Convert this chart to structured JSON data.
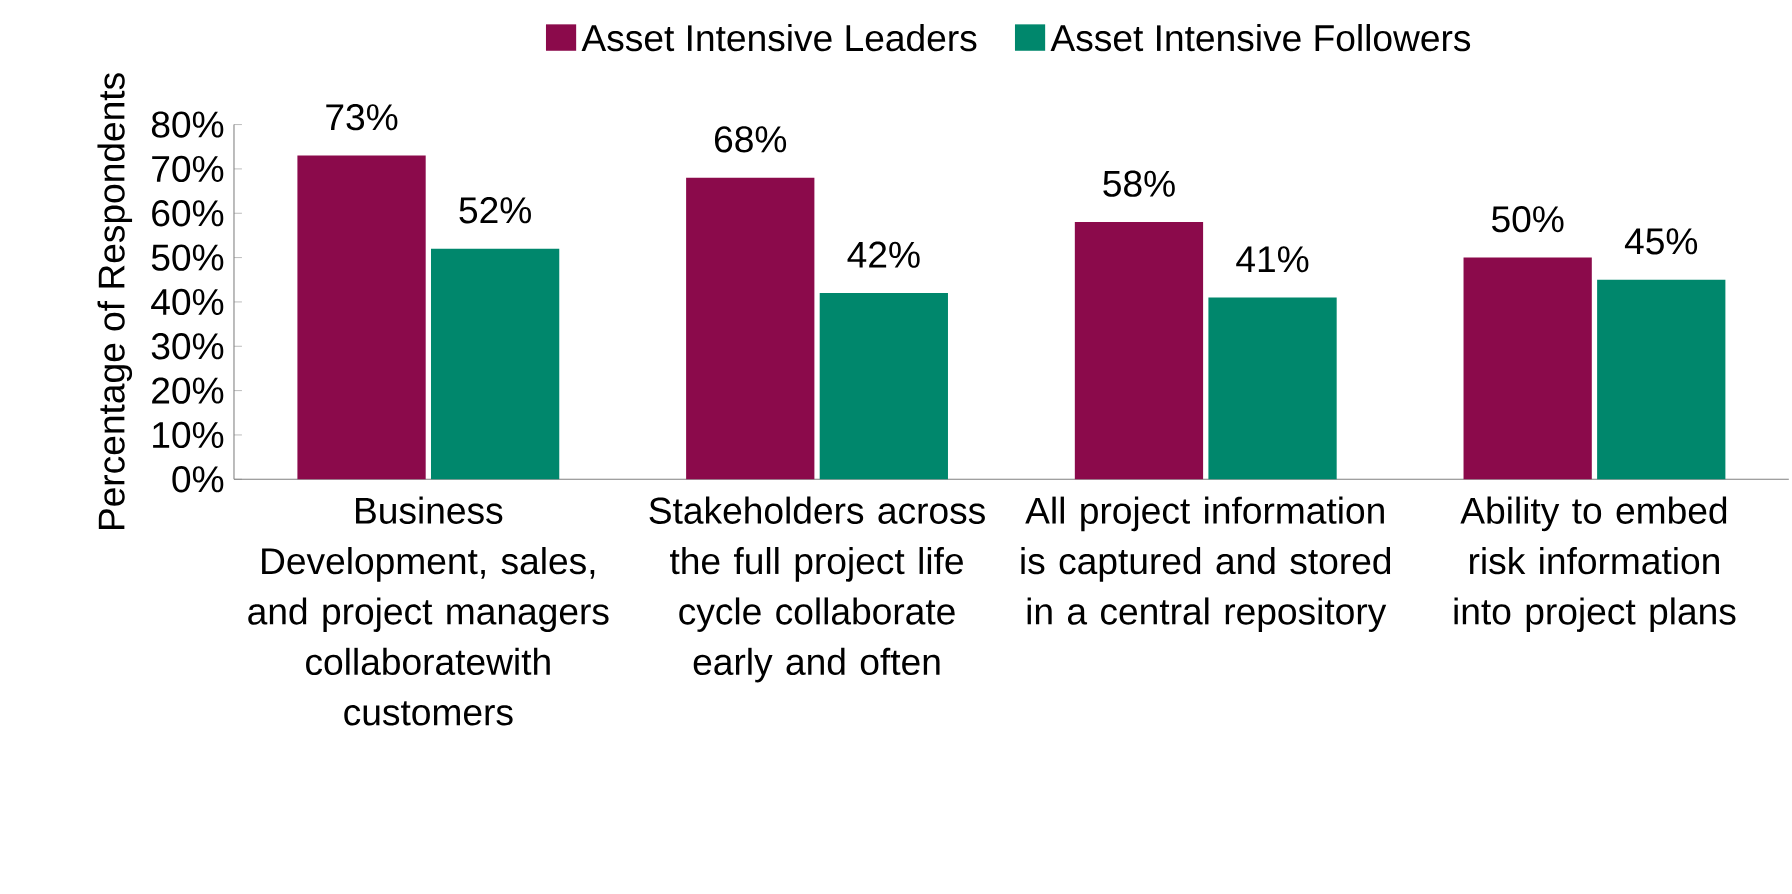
{
  "chart_data": {
    "type": "bar",
    "ylabel": "Percentage of Respondents",
    "categories": [
      "Business Development, sales, and project managers collaboratewith customers",
      "Stakeholders across the full project life cycle collaborate early and often",
      "All project information is captured and stored in a central repository",
      "Ability to embed risk information into project plans"
    ],
    "series": [
      {
        "name": "Asset Intensive Leaders",
        "color": "#8b0a4b",
        "values": [
          73,
          68,
          58,
          50
        ],
        "value_labels": [
          "73%",
          "68%",
          "58%",
          "50%"
        ]
      },
      {
        "name": "Asset Intensive Followers",
        "color": "#00876c",
        "values": [
          52,
          42,
          41,
          45
        ],
        "value_labels": [
          "52%",
          "42%",
          "41%",
          "45%"
        ]
      }
    ],
    "ylim": [
      0,
      80
    ],
    "yticks": [
      {
        "value": 0,
        "label": "0%"
      },
      {
        "value": 10,
        "label": "10%"
      },
      {
        "value": 20,
        "label": "20%"
      },
      {
        "value": 30,
        "label": "30%"
      },
      {
        "value": 40,
        "label": "40%"
      },
      {
        "value": 50,
        "label": "50%"
      },
      {
        "value": 60,
        "label": "60%"
      },
      {
        "value": 70,
        "label": "70%"
      },
      {
        "value": 80,
        "label": "80%"
      }
    ],
    "legend": "top"
  }
}
